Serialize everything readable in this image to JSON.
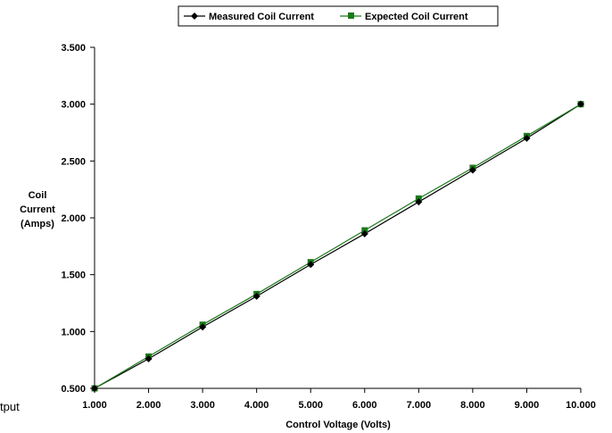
{
  "page_text": {
    "edge_fragment": "tput"
  },
  "chart_data": {
    "type": "line",
    "title": "",
    "xlabel": "Control Voltage (Volts)",
    "ylabel": [
      "Coil",
      "Current",
      "(Amps)"
    ],
    "x": [
      1,
      2,
      3,
      4,
      5,
      6,
      7,
      8,
      9,
      10
    ],
    "x_tick_labels": [
      "1.000",
      "2.000",
      "3.000",
      "4.000",
      "5.000",
      "6.000",
      "7.000",
      "8.000",
      "9.000",
      "10.000"
    ],
    "y_tick_labels": [
      "0.500",
      "1.000",
      "1.500",
      "2.000",
      "2.500",
      "3.000",
      "3.500"
    ],
    "y_ticks": [
      0.5,
      1.0,
      1.5,
      2.0,
      2.5,
      3.0,
      3.5
    ],
    "xlim": [
      1,
      10
    ],
    "ylim": [
      0.5,
      3.5
    ],
    "grid": false,
    "legend_position": "top",
    "series": [
      {
        "name": "Measured Coil Current",
        "marker": "diamond",
        "color": "#000000",
        "values": [
          0.5,
          0.76,
          1.04,
          1.31,
          1.59,
          1.86,
          2.14,
          2.42,
          2.7,
          3.0
        ]
      },
      {
        "name": "Expected Coil Current",
        "marker": "square",
        "color": "#1a7a1a",
        "values": [
          0.5,
          0.78,
          1.06,
          1.33,
          1.61,
          1.89,
          2.17,
          2.44,
          2.72,
          3.0
        ]
      }
    ]
  }
}
